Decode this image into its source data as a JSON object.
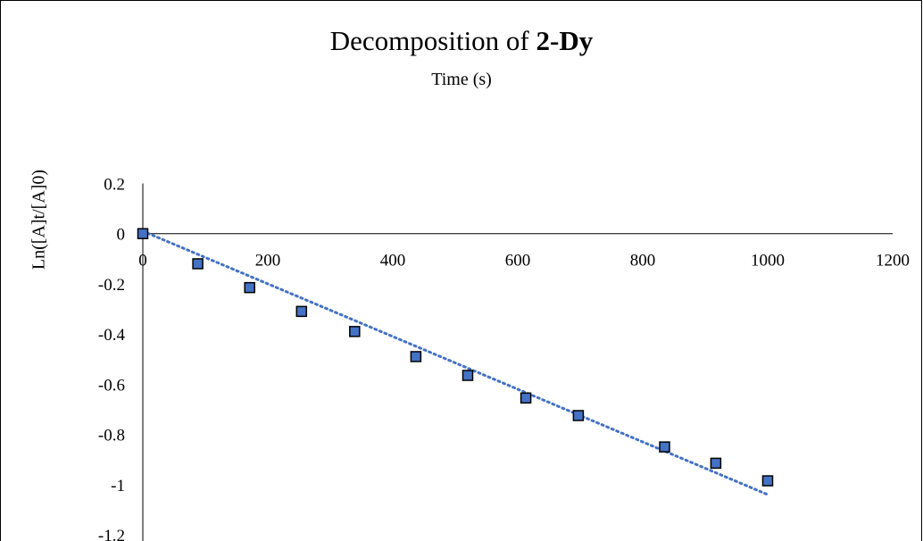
{
  "chart_data": {
    "type": "scatter",
    "title": "Decomposition of",
    "title_bold": "2-Dy",
    "xlabel": "Time (s)",
    "ylabel": "Ln([A]t/[A]0)",
    "xlim": [
      0,
      1200
    ],
    "ylim": [
      -1.2,
      0.2
    ],
    "x_ticks": [
      0,
      200,
      400,
      600,
      800,
      1000,
      1200
    ],
    "x_tick_labels": [
      "0",
      "200",
      "400",
      "600",
      "800",
      "1000",
      "1200"
    ],
    "y_ticks": [
      0.2,
      0,
      -0.2,
      -0.4,
      -0.6,
      -0.8,
      -1,
      -1.2
    ],
    "y_tick_labels": [
      "0.2",
      "0",
      "-0.2",
      "-0.4",
      "-0.6",
      "-0.8",
      "-1",
      "-1.2"
    ],
    "grid": false,
    "legend": "none",
    "series": [
      {
        "marker": "square",
        "color": "#4472C4",
        "x": [
          0,
          88,
          171,
          254,
          339,
          437,
          520,
          613,
          697,
          835,
          917,
          1000
        ],
        "y": [
          0.0,
          -0.12,
          -0.215,
          -0.31,
          -0.39,
          -0.49,
          -0.565,
          -0.655,
          -0.725,
          -0.85,
          -0.915,
          -0.985
        ]
      }
    ],
    "trendline": {
      "type": "linear",
      "style": "dotted",
      "color": "#4472C4",
      "x": [
        0,
        1000
      ],
      "y": [
        0.01,
        -1.04
      ]
    }
  }
}
